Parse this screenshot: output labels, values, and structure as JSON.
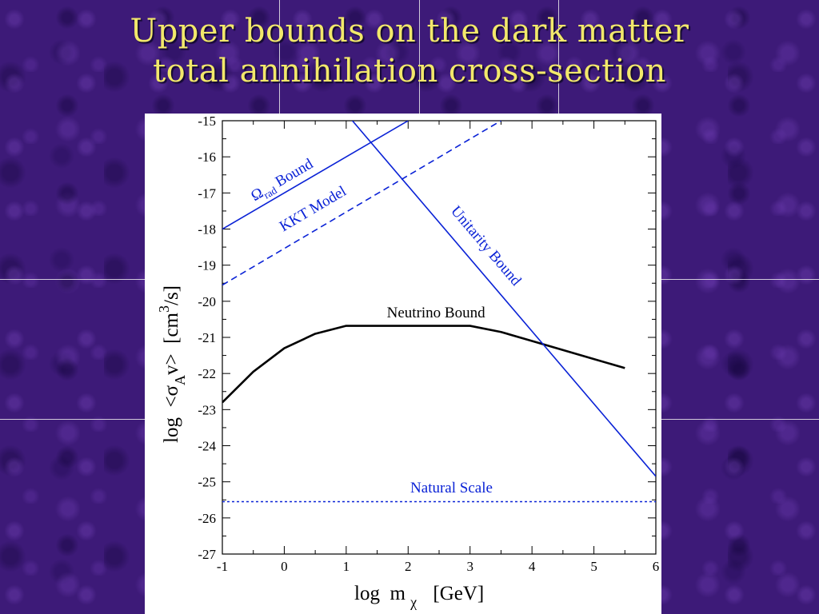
{
  "slide": {
    "title_line1": "Upper bounds on the dark matter",
    "title_line2": "total annihilation cross-section",
    "background_color": "#3d1a78",
    "title_color": "#f2e86b"
  },
  "chart_data": {
    "type": "line",
    "title": "",
    "xlabel": "log  m",
    "xlabel_subscript": "χ",
    "xlabel_unit": "[GeV]",
    "ylabel": "log  <σ",
    "ylabel_subscript": "A",
    "ylabel_mid": "v>  [cm",
    "ylabel_superscript": "3",
    "ylabel_end": "/s]",
    "xlim": [
      -1,
      6
    ],
    "ylim": [
      -27,
      -15
    ],
    "xticks": [
      -1,
      0,
      1,
      2,
      3,
      4,
      5,
      6
    ],
    "yticks": [
      -27,
      -26,
      -25,
      -24,
      -23,
      -22,
      -21,
      -20,
      -19,
      -18,
      -17,
      -16,
      -15
    ],
    "grid": false,
    "series": [
      {
        "name": "Neutrino Bound",
        "color": "#000000",
        "style": "solid",
        "x": [
          -1,
          -0.5,
          0,
          0.5,
          1,
          2,
          3,
          3.5,
          4,
          5,
          5.5
        ],
        "y": [
          -22.8,
          -21.95,
          -21.3,
          -20.9,
          -20.68,
          -20.68,
          -20.68,
          -20.85,
          -21.1,
          -21.6,
          -21.85
        ]
      },
      {
        "name": "Ω",
        "name_subscript": "rad",
        "name_suffix": " Bound",
        "color": "#0a22d6",
        "style": "solid",
        "x": [
          -1,
          2
        ],
        "y": [
          -18.0,
          -15.0
        ]
      },
      {
        "name": "KKT Model",
        "color": "#0a22d6",
        "style": "dashed",
        "x": [
          -1,
          3.5
        ],
        "y": [
          -19.55,
          -15.0
        ]
      },
      {
        "name": "Unitarity Bound",
        "color": "#0a22d6",
        "style": "solid",
        "x": [
          1.1,
          6
        ],
        "y": [
          -15.0,
          -24.85
        ]
      },
      {
        "name": "Natural Scale",
        "color": "#0a22d6",
        "style": "dotted",
        "x": [
          -1,
          6
        ],
        "y": [
          -25.55,
          -25.55
        ]
      }
    ]
  }
}
